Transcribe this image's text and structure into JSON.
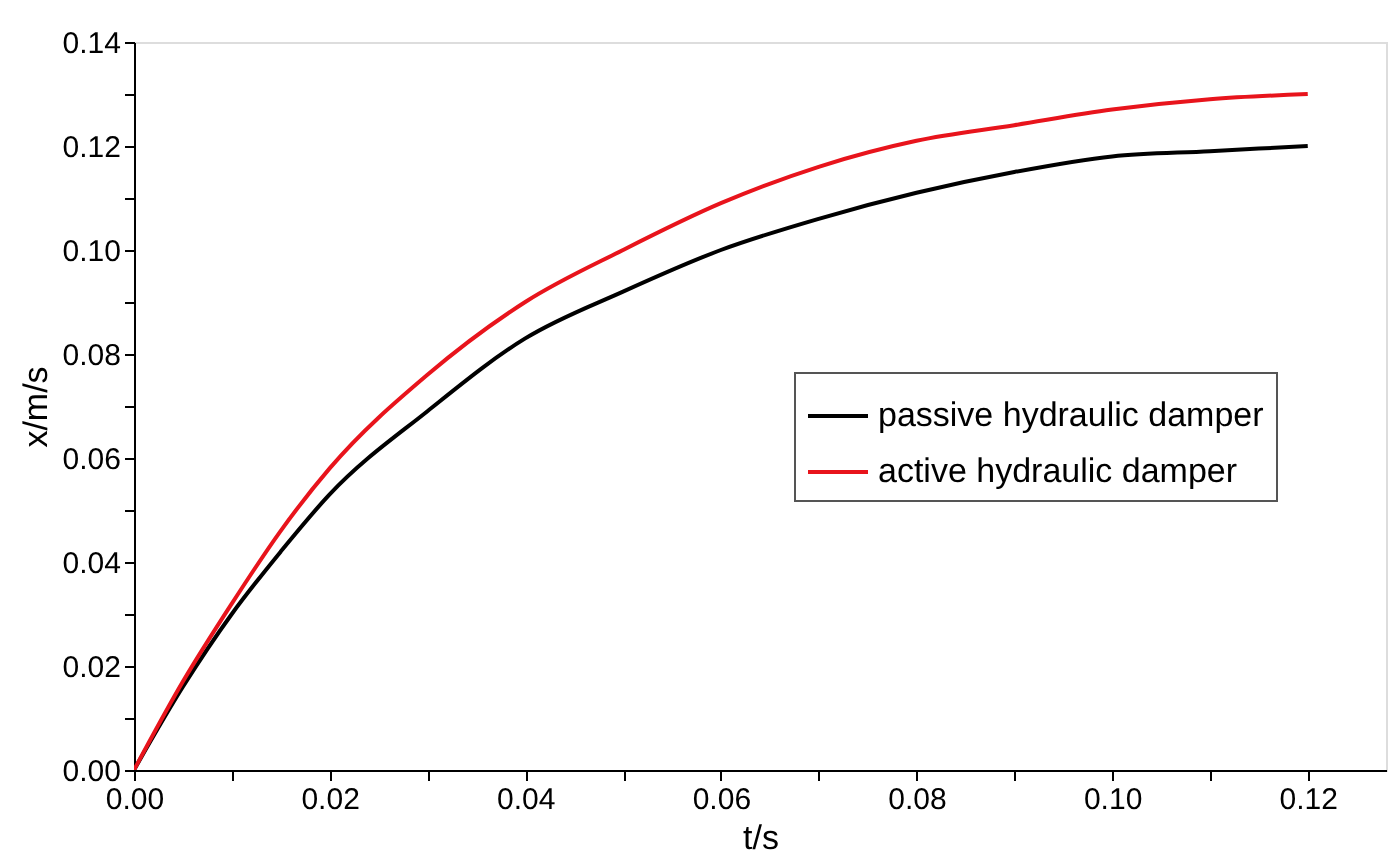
{
  "chart_data": {
    "type": "line",
    "xlabel": "t/s",
    "ylabel": "x/m/s",
    "x": [
      0,
      0.005,
      0.01,
      0.015,
      0.02,
      0.03,
      0.04,
      0.05,
      0.06,
      0.07,
      0.08,
      0.09,
      0.1,
      0.11,
      0.12
    ],
    "series": [
      {
        "name": "passive hydraulic damper",
        "color": "#000000",
        "values": [
          0,
          0.016,
          0.03,
          0.042,
          0.053,
          0.069,
          0.083,
          0.092,
          0.1,
          0.106,
          0.111,
          0.115,
          0.118,
          0.119,
          0.12
        ]
      },
      {
        "name": "active hydraulic damper",
        "color": "#e8141c",
        "values": [
          0,
          0.017,
          0.032,
          0.046,
          0.058,
          0.076,
          0.09,
          0.1,
          0.109,
          0.116,
          0.121,
          0.124,
          0.127,
          0.129,
          0.13
        ]
      }
    ],
    "xlim": [
      0,
      0.128
    ],
    "xticks": [
      {
        "value": 0,
        "label": "0.00"
      },
      {
        "value": 0.01,
        "label": null
      },
      {
        "value": 0.02,
        "label": "0.02"
      },
      {
        "value": 0.03,
        "label": null
      },
      {
        "value": 0.04,
        "label": "0.04"
      },
      {
        "value": 0.05,
        "label": null
      },
      {
        "value": 0.06,
        "label": "0.06"
      },
      {
        "value": 0.07,
        "label": null
      },
      {
        "value": 0.08,
        "label": "0.08"
      },
      {
        "value": 0.09,
        "label": null
      },
      {
        "value": 0.1,
        "label": "0.10"
      },
      {
        "value": 0.11,
        "label": null
      },
      {
        "value": 0.12,
        "label": "0.12"
      }
    ],
    "ylim": [
      0,
      0.14
    ],
    "yticks": [
      {
        "value": 0,
        "label": "0.00"
      },
      {
        "value": 0.01,
        "label": null
      },
      {
        "value": 0.02,
        "label": "0.02"
      },
      {
        "value": 0.03,
        "label": null
      },
      {
        "value": 0.04,
        "label": "0.04"
      },
      {
        "value": 0.05,
        "label": null
      },
      {
        "value": 0.06,
        "label": "0.06"
      },
      {
        "value": 0.07,
        "label": null
      },
      {
        "value": 0.08,
        "label": "0.08"
      },
      {
        "value": 0.09,
        "label": null
      },
      {
        "value": 0.1,
        "label": "0.10"
      },
      {
        "value": 0.11,
        "label": null
      },
      {
        "value": 0.12,
        "label": "0.12"
      },
      {
        "value": 0.13,
        "label": null
      },
      {
        "value": 0.14,
        "label": "0.14"
      }
    ],
    "grid": false,
    "legend": "right",
    "marker": "none",
    "line_style": "solid"
  }
}
